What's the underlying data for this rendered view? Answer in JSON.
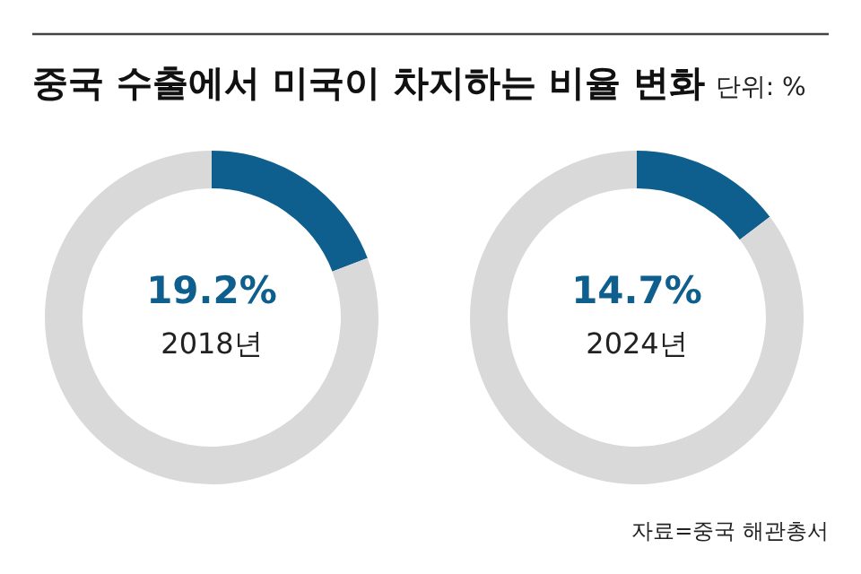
{
  "chart_data": [
    {
      "type": "donut",
      "title": "중국 수출에서 미국이 차지하는 비율 변화",
      "categories": [
        null,
        null
      ],
      "values": [
        19.2,
        80.8
      ],
      "colors": [
        "#0f5f8e",
        "#d9d9d9"
      ],
      "value_labels": [
        "19.2%",
        null
      ],
      "annotations": [
        "2018년"
      ]
    },
    {
      "type": "donut",
      "subtitle": "단위: %",
      "categories": [
        null,
        null
      ],
      "values": [
        14.7,
        85.3
      ],
      "colors": [
        "#0f5f8e",
        "#d9d9d9"
      ],
      "value_labels": [
        "14.7%",
        null
      ],
      "annotations": [
        "2024년",
        "자료=중국 해관총서"
      ]
    }
  ]
}
